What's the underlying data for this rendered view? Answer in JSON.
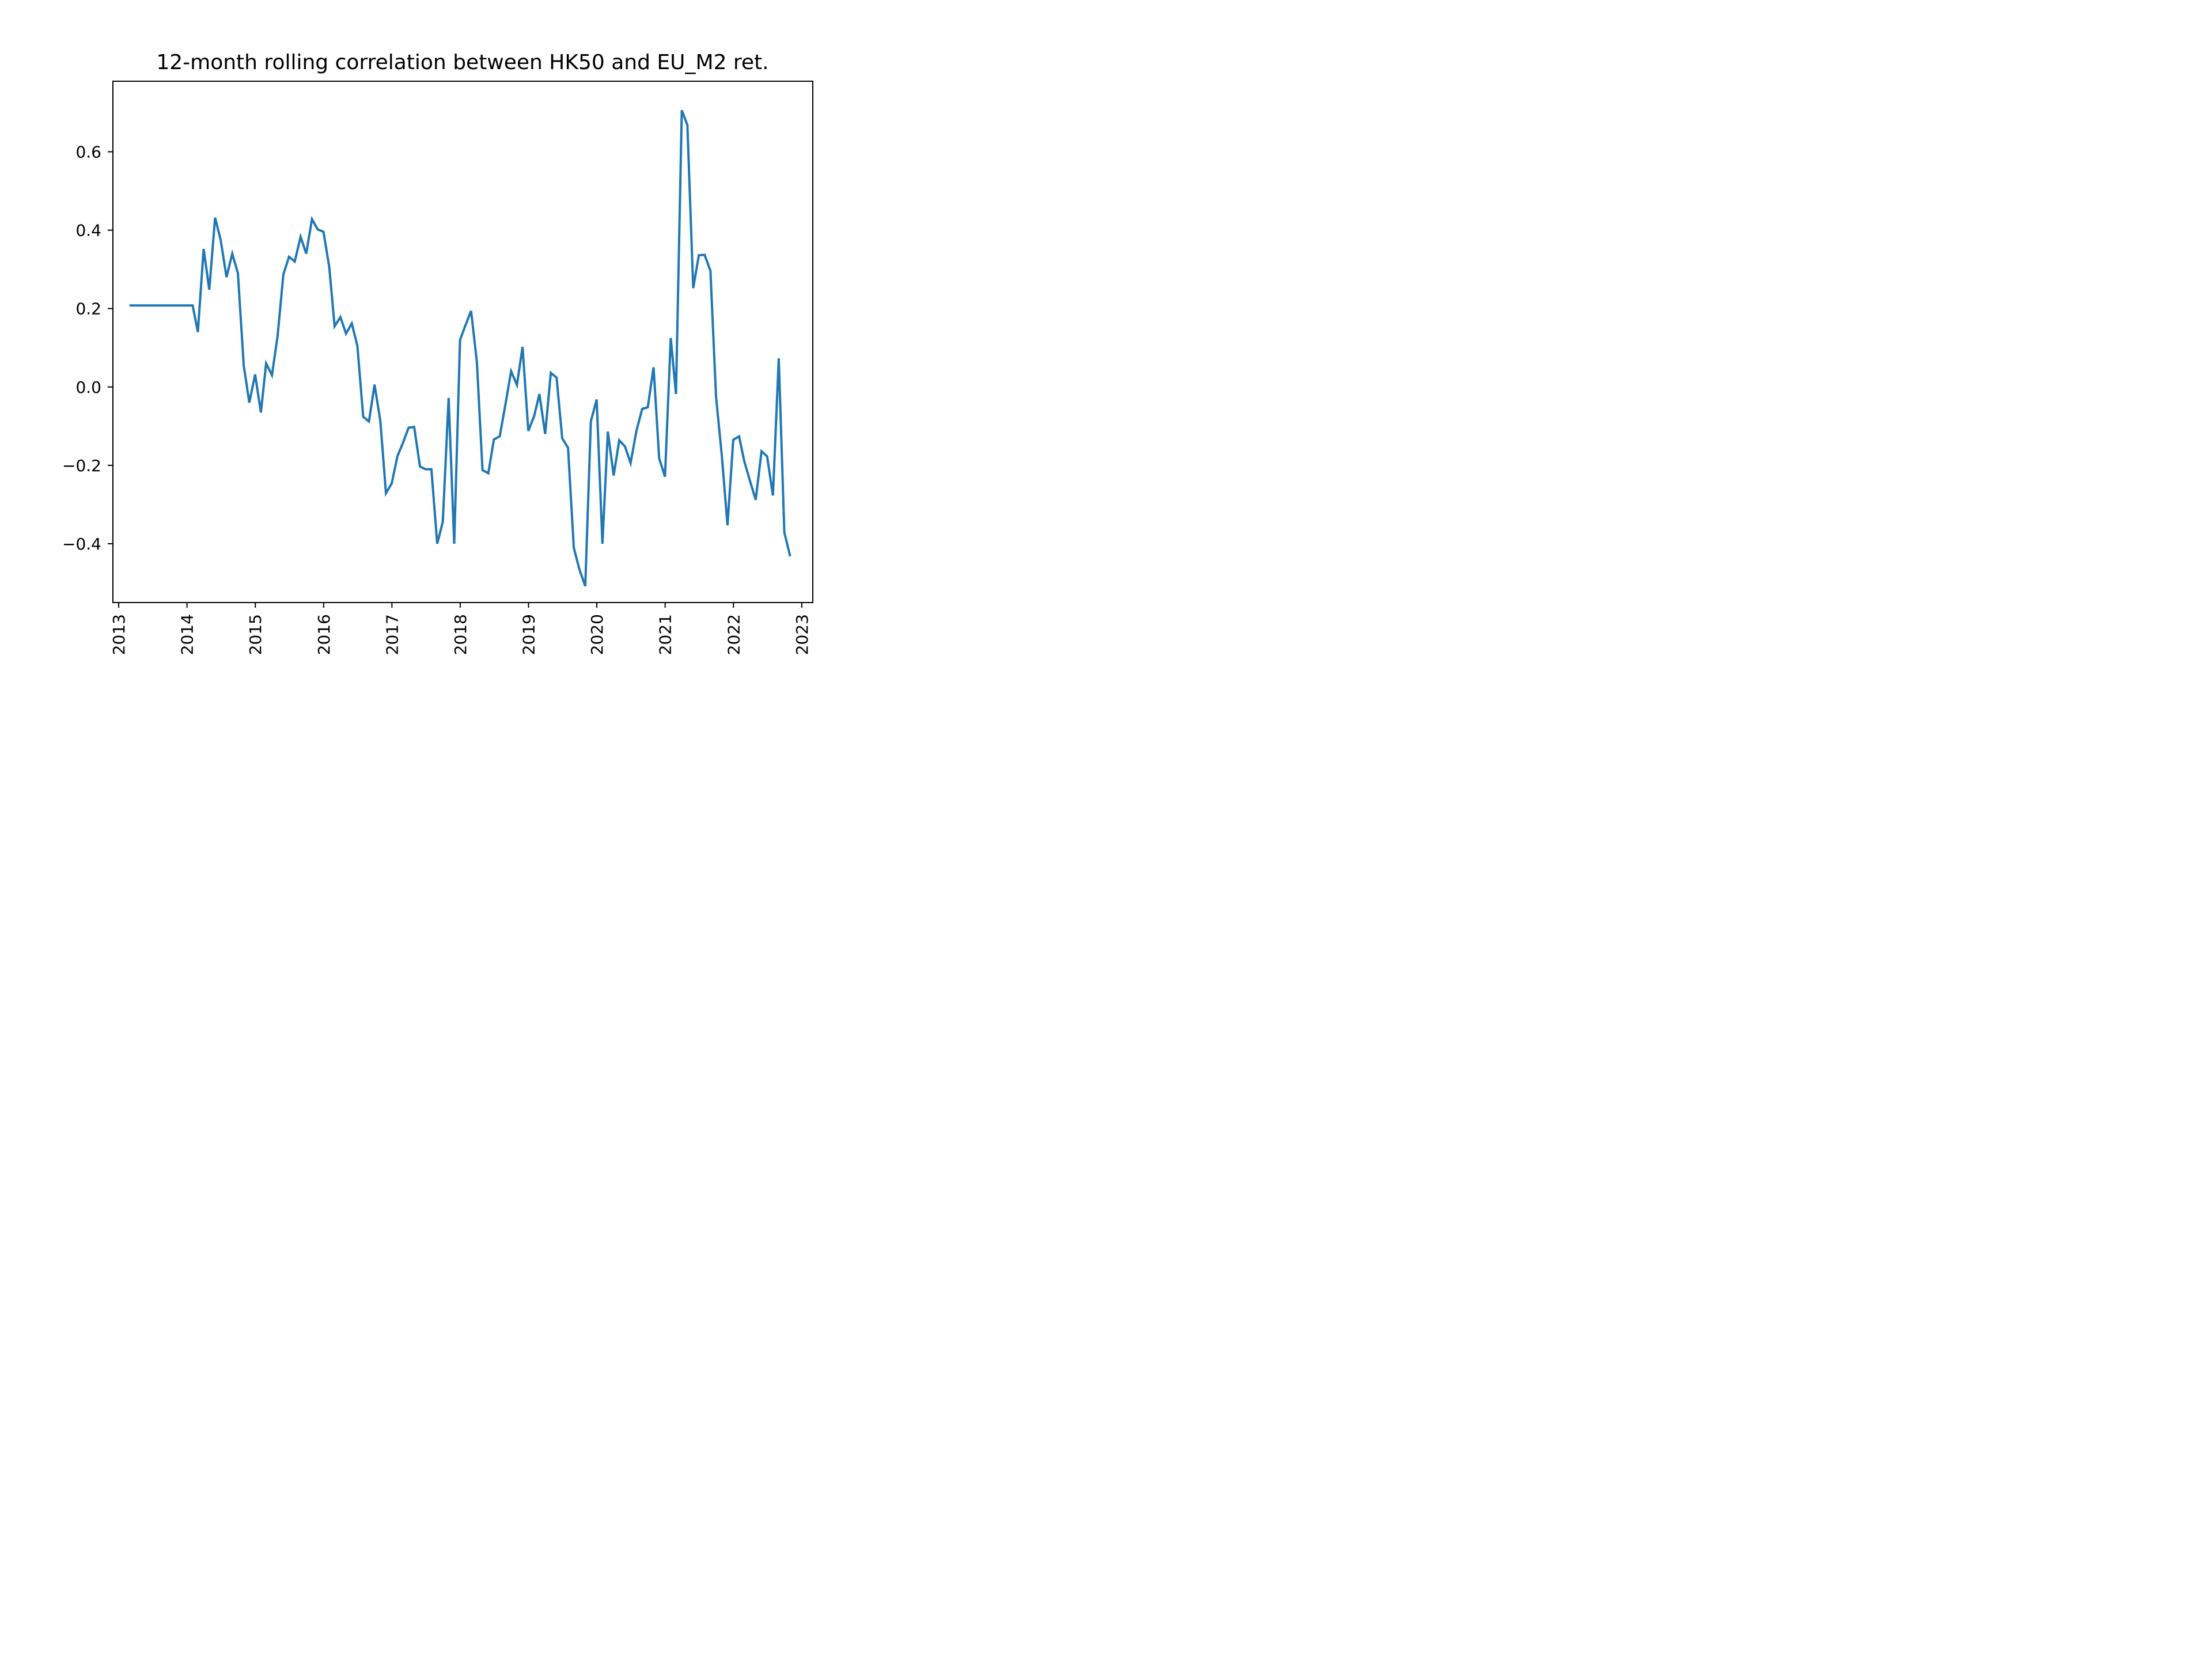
{
  "chart_data": {
    "type": "line",
    "title": "12-month rolling correlation between HK50 and EU_M2 ret.",
    "xlabel": "",
    "ylabel": "",
    "xlim": [
      "2012-12-01",
      "2023-03-01"
    ],
    "ylim": [
      -0.55,
      0.78
    ],
    "x_ticks": [
      "2013",
      "2014",
      "2015",
      "2016",
      "2017",
      "2018",
      "2019",
      "2020",
      "2021",
      "2022",
      "2023"
    ],
    "y_ticks": [
      {
        "value": -0.4,
        "label": "−0.4"
      },
      {
        "value": -0.2,
        "label": "−0.2"
      },
      {
        "value": 0.0,
        "label": "0.0"
      },
      {
        "value": 0.2,
        "label": "0.2"
      },
      {
        "value": 0.4,
        "label": "0.4"
      },
      {
        "value": 0.6,
        "label": "0.6"
      }
    ],
    "grid": false,
    "series": [
      {
        "color": "#1f77b4",
        "x": [
          "2013-02-28",
          "2013-03-31",
          "2013-04-30",
          "2013-05-31",
          "2013-06-30",
          "2013-07-31",
          "2013-08-31",
          "2013-09-30",
          "2013-10-31",
          "2013-11-30",
          "2013-12-31",
          "2014-01-31",
          "2014-02-28",
          "2014-03-31",
          "2014-04-30",
          "2014-05-31",
          "2014-06-30",
          "2014-07-31",
          "2014-08-31",
          "2014-09-30",
          "2014-10-31",
          "2014-11-30",
          "2014-12-31",
          "2015-01-31",
          "2015-02-28",
          "2015-03-31",
          "2015-04-30",
          "2015-05-31",
          "2015-06-30",
          "2015-07-31",
          "2015-08-31",
          "2015-09-30",
          "2015-10-31",
          "2015-11-30",
          "2015-12-31",
          "2016-01-31",
          "2016-02-29",
          "2016-03-31",
          "2016-04-30",
          "2016-05-31",
          "2016-06-30",
          "2016-07-31",
          "2016-08-31",
          "2016-09-30",
          "2016-10-31",
          "2016-11-30",
          "2016-12-31",
          "2017-01-31",
          "2017-02-28",
          "2017-03-31",
          "2017-04-30",
          "2017-05-31",
          "2017-06-30",
          "2017-07-31",
          "2017-08-31",
          "2017-09-30",
          "2017-10-31",
          "2017-11-30",
          "2017-12-31",
          "2018-01-31",
          "2018-02-28",
          "2018-03-31",
          "2018-04-30",
          "2018-05-31",
          "2018-06-30",
          "2018-07-31",
          "2018-08-31",
          "2018-09-30",
          "2018-10-31",
          "2018-11-30",
          "2018-12-31",
          "2019-01-31",
          "2019-02-28",
          "2019-03-31",
          "2019-04-30",
          "2019-05-31",
          "2019-06-30",
          "2019-07-31",
          "2019-08-31",
          "2019-09-30",
          "2019-10-31",
          "2019-11-30",
          "2019-12-31",
          "2020-01-31",
          "2020-02-29",
          "2020-03-31",
          "2020-04-30",
          "2020-05-31",
          "2020-06-30",
          "2020-07-31",
          "2020-08-31",
          "2020-09-30",
          "2020-10-31",
          "2020-11-30",
          "2020-12-31",
          "2021-01-31",
          "2021-02-28",
          "2021-03-31",
          "2021-04-30",
          "2021-05-31",
          "2021-06-30",
          "2021-07-31",
          "2021-08-31",
          "2021-09-30",
          "2021-10-31",
          "2021-11-30",
          "2021-12-31",
          "2022-01-31",
          "2022-02-28",
          "2022-03-31",
          "2022-04-30",
          "2022-05-31",
          "2022-06-30",
          "2022-07-31",
          "2022-08-31",
          "2022-09-30",
          "2022-10-31"
        ],
        "y": [
          0.208,
          0.208,
          0.208,
          0.208,
          0.208,
          0.208,
          0.208,
          0.208,
          0.208,
          0.208,
          0.208,
          0.208,
          0.14,
          0.352,
          0.248,
          0.432,
          0.375,
          0.28,
          0.34,
          0.29,
          0.055,
          -0.04,
          0.032,
          -0.065,
          0.06,
          0.03,
          0.13,
          0.287,
          0.332,
          0.32,
          0.383,
          0.34,
          0.428,
          0.402,
          0.396,
          0.307,
          0.155,
          0.178,
          0.136,
          0.162,
          0.105,
          -0.076,
          -0.088,
          0.006,
          -0.087,
          -0.271,
          -0.246,
          -0.176,
          -0.144,
          -0.104,
          -0.102,
          -0.203,
          -0.21,
          -0.21,
          -0.4,
          -0.344,
          -0.028,
          -0.4,
          0.12,
          0.16,
          0.194,
          0.063,
          -0.212,
          -0.22,
          -0.134,
          -0.126,
          -0.043,
          0.04,
          0.005,
          0.102,
          -0.112,
          -0.074,
          -0.018,
          -0.12,
          0.036,
          0.024,
          -0.131,
          -0.155,
          -0.41,
          -0.466,
          -0.508,
          -0.088,
          -0.032,
          -0.4,
          -0.114,
          -0.226,
          -0.136,
          -0.152,
          -0.194,
          -0.112,
          -0.056,
          -0.052,
          0.05,
          -0.182,
          -0.229,
          0.125,
          -0.018,
          0.706,
          0.668,
          0.252,
          0.336,
          0.337,
          0.296,
          -0.024,
          -0.176,
          -0.353,
          -0.135,
          -0.126,
          -0.19,
          -0.241,
          -0.288,
          -0.164,
          -0.177,
          -0.277,
          0.073,
          -0.371,
          -0.432
        ]
      }
    ]
  }
}
